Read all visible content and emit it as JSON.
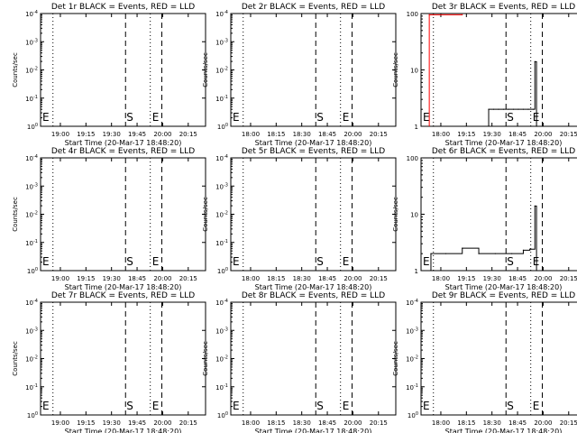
{
  "chart_data": [
    {
      "type": "line",
      "title": "Det 1r BLACK = Events, RED = LLD",
      "xlabel": "Start Time (20-Mar-17 18:48:20)",
      "ylabel": "Counts/sec",
      "scale": "log",
      "ytick_labels": [
        "10^0",
        "10^-1",
        "10^-2",
        "10^-3",
        "10^-4"
      ],
      "xtick_labels": [
        "19:00",
        "19:15",
        "19:30",
        "19:45",
        "20:00",
        "20:15"
      ],
      "markers": {
        "start": "E",
        "sun": "S",
        "end": "E"
      },
      "series": []
    },
    {
      "type": "line",
      "title": "Det 2r BLACK = Events, RED = LLD",
      "xlabel": "Start Time (20-Mar-17 18:48:20)",
      "ylabel": "Counts/sec",
      "scale": "log",
      "ytick_labels": [
        "10^0",
        "10^-1",
        "10^-2",
        "10^-3",
        "10^-4"
      ],
      "xtick_labels": [
        "18:00",
        "18:15",
        "18:30",
        "18:45",
        "20:00",
        "20:15"
      ],
      "markers": {
        "start": "E",
        "sun": "S",
        "end": "E"
      },
      "series": []
    },
    {
      "type": "line",
      "title": "Det 3r BLACK = Events, RED = LLD",
      "xlabel": "Start Time (20-Mar-17 18:48:20)",
      "ylabel": "Counts/sec",
      "scale": "log",
      "ytick_labels": [
        "1",
        "10",
        "100"
      ],
      "xtick_labels": [
        "18:00",
        "19:15",
        "19:30",
        "18:45",
        "20:00",
        "20:15"
      ],
      "markers": {
        "start": "E",
        "sun": "S",
        "end": "E"
      },
      "series": [
        {
          "color": "#000000",
          "x": [
            0.41,
            0.44,
            0.47,
            0.5,
            0.53,
            0.56,
            0.59,
            0.62,
            0.65,
            0.68,
            0.69,
            0.7
          ],
          "y": [
            2,
            2,
            2,
            2,
            2,
            2,
            2,
            2,
            2,
            2,
            14,
            1
          ]
        },
        {
          "color": "#ff0000",
          "x": [
            0.05,
            0.25
          ],
          "y": [
            95,
            95
          ]
        }
      ]
    },
    {
      "type": "line",
      "title": "Det 4r BLACK = Events, RED = LLD",
      "xlabel": "Start Time (20-Mar-17 18:48:20)",
      "ylabel": "Counts/sec",
      "scale": "log",
      "ytick_labels": [
        "10^0",
        "10^-1",
        "10^-2",
        "10^-3",
        "10^-4"
      ],
      "xtick_labels": [
        "19:00",
        "19:15",
        "19:30",
        "18:45",
        "20:00",
        "20:15"
      ],
      "markers": {
        "start": "E",
        "sun": "S",
        "end": "E"
      },
      "series": []
    },
    {
      "type": "line",
      "title": "Det 5r BLACK = Events, RED = LLD",
      "xlabel": "Start Time (20-Mar-17 18:48:20)",
      "ylabel": "Counts/sec",
      "scale": "log",
      "ytick_labels": [
        "10^0",
        "10^-1",
        "10^-2",
        "10^-3",
        "10^-4"
      ],
      "xtick_labels": [
        "18:00",
        "18:15",
        "18:30",
        "18:45",
        "20:00",
        "20:15"
      ],
      "markers": {
        "start": "E",
        "sun": "S",
        "end": "E"
      },
      "series": []
    },
    {
      "type": "line",
      "title": "Det 6r BLACK = Events, RED = LLD",
      "xlabel": "Start Time (20-Mar-17 18:48:20)",
      "ylabel": "Counts/sec",
      "scale": "log",
      "ytick_labels": [
        "1",
        "10",
        "100"
      ],
      "xtick_labels": [
        "18:00",
        "19:15",
        "19:30",
        "18:45",
        "20:00",
        "20:15"
      ],
      "markers": {
        "start": "E",
        "sun": "S",
        "end": "E"
      },
      "series": [
        {
          "color": "#000000",
          "x": [
            0.06,
            0.15,
            0.25,
            0.35,
            0.45,
            0.55,
            0.62,
            0.66,
            0.69,
            0.7
          ],
          "y": [
            2,
            2,
            2.5,
            2,
            2,
            2,
            2.3,
            2.4,
            14,
            1
          ]
        }
      ]
    },
    {
      "type": "line",
      "title": "Det 7r BLACK = Events, RED = LLD",
      "xlabel": "Start Time (20-Mar-17 18:48:20)",
      "ylabel": "Counts/sec",
      "scale": "log",
      "ytick_labels": [
        "10^0",
        "10^-1",
        "10^-2",
        "10^-3",
        "10^-4"
      ],
      "xtick_labels": [
        "19:00",
        "19:15",
        "19:30",
        "19:45",
        "20:00",
        "20:15"
      ],
      "markers": {
        "start": "E",
        "sun": "S",
        "end": "E"
      },
      "series": []
    },
    {
      "type": "line",
      "title": "Det 8r BLACK = Events, RED = LLD",
      "xlabel": "Start Time (20-Mar-17 18:48:20)",
      "ylabel": "Counts/sec",
      "scale": "log",
      "ytick_labels": [
        "10^0",
        "10^-1",
        "10^-2",
        "10^-3",
        "10^-4"
      ],
      "xtick_labels": [
        "18:00",
        "18:15",
        "18:30",
        "18:45",
        "20:00",
        "20:15"
      ],
      "markers": {
        "start": "E",
        "sun": "S",
        "end": "E"
      },
      "series": []
    },
    {
      "type": "line",
      "title": "Det 9r BLACK = Events, RED = LLD",
      "xlabel": "Start Time (20-Mar-17 18:48:20)",
      "ylabel": "Counts/sec",
      "scale": "log",
      "ytick_labels": [
        "10^0",
        "10^-1",
        "10^-2",
        "10^-3",
        "10^-4"
      ],
      "xtick_labels": [
        "18:00",
        "18:15",
        "18:30",
        "18:45",
        "20:00",
        "20:15"
      ],
      "markers": {
        "start": "E",
        "sun": "S",
        "end": "E"
      },
      "series": []
    }
  ]
}
